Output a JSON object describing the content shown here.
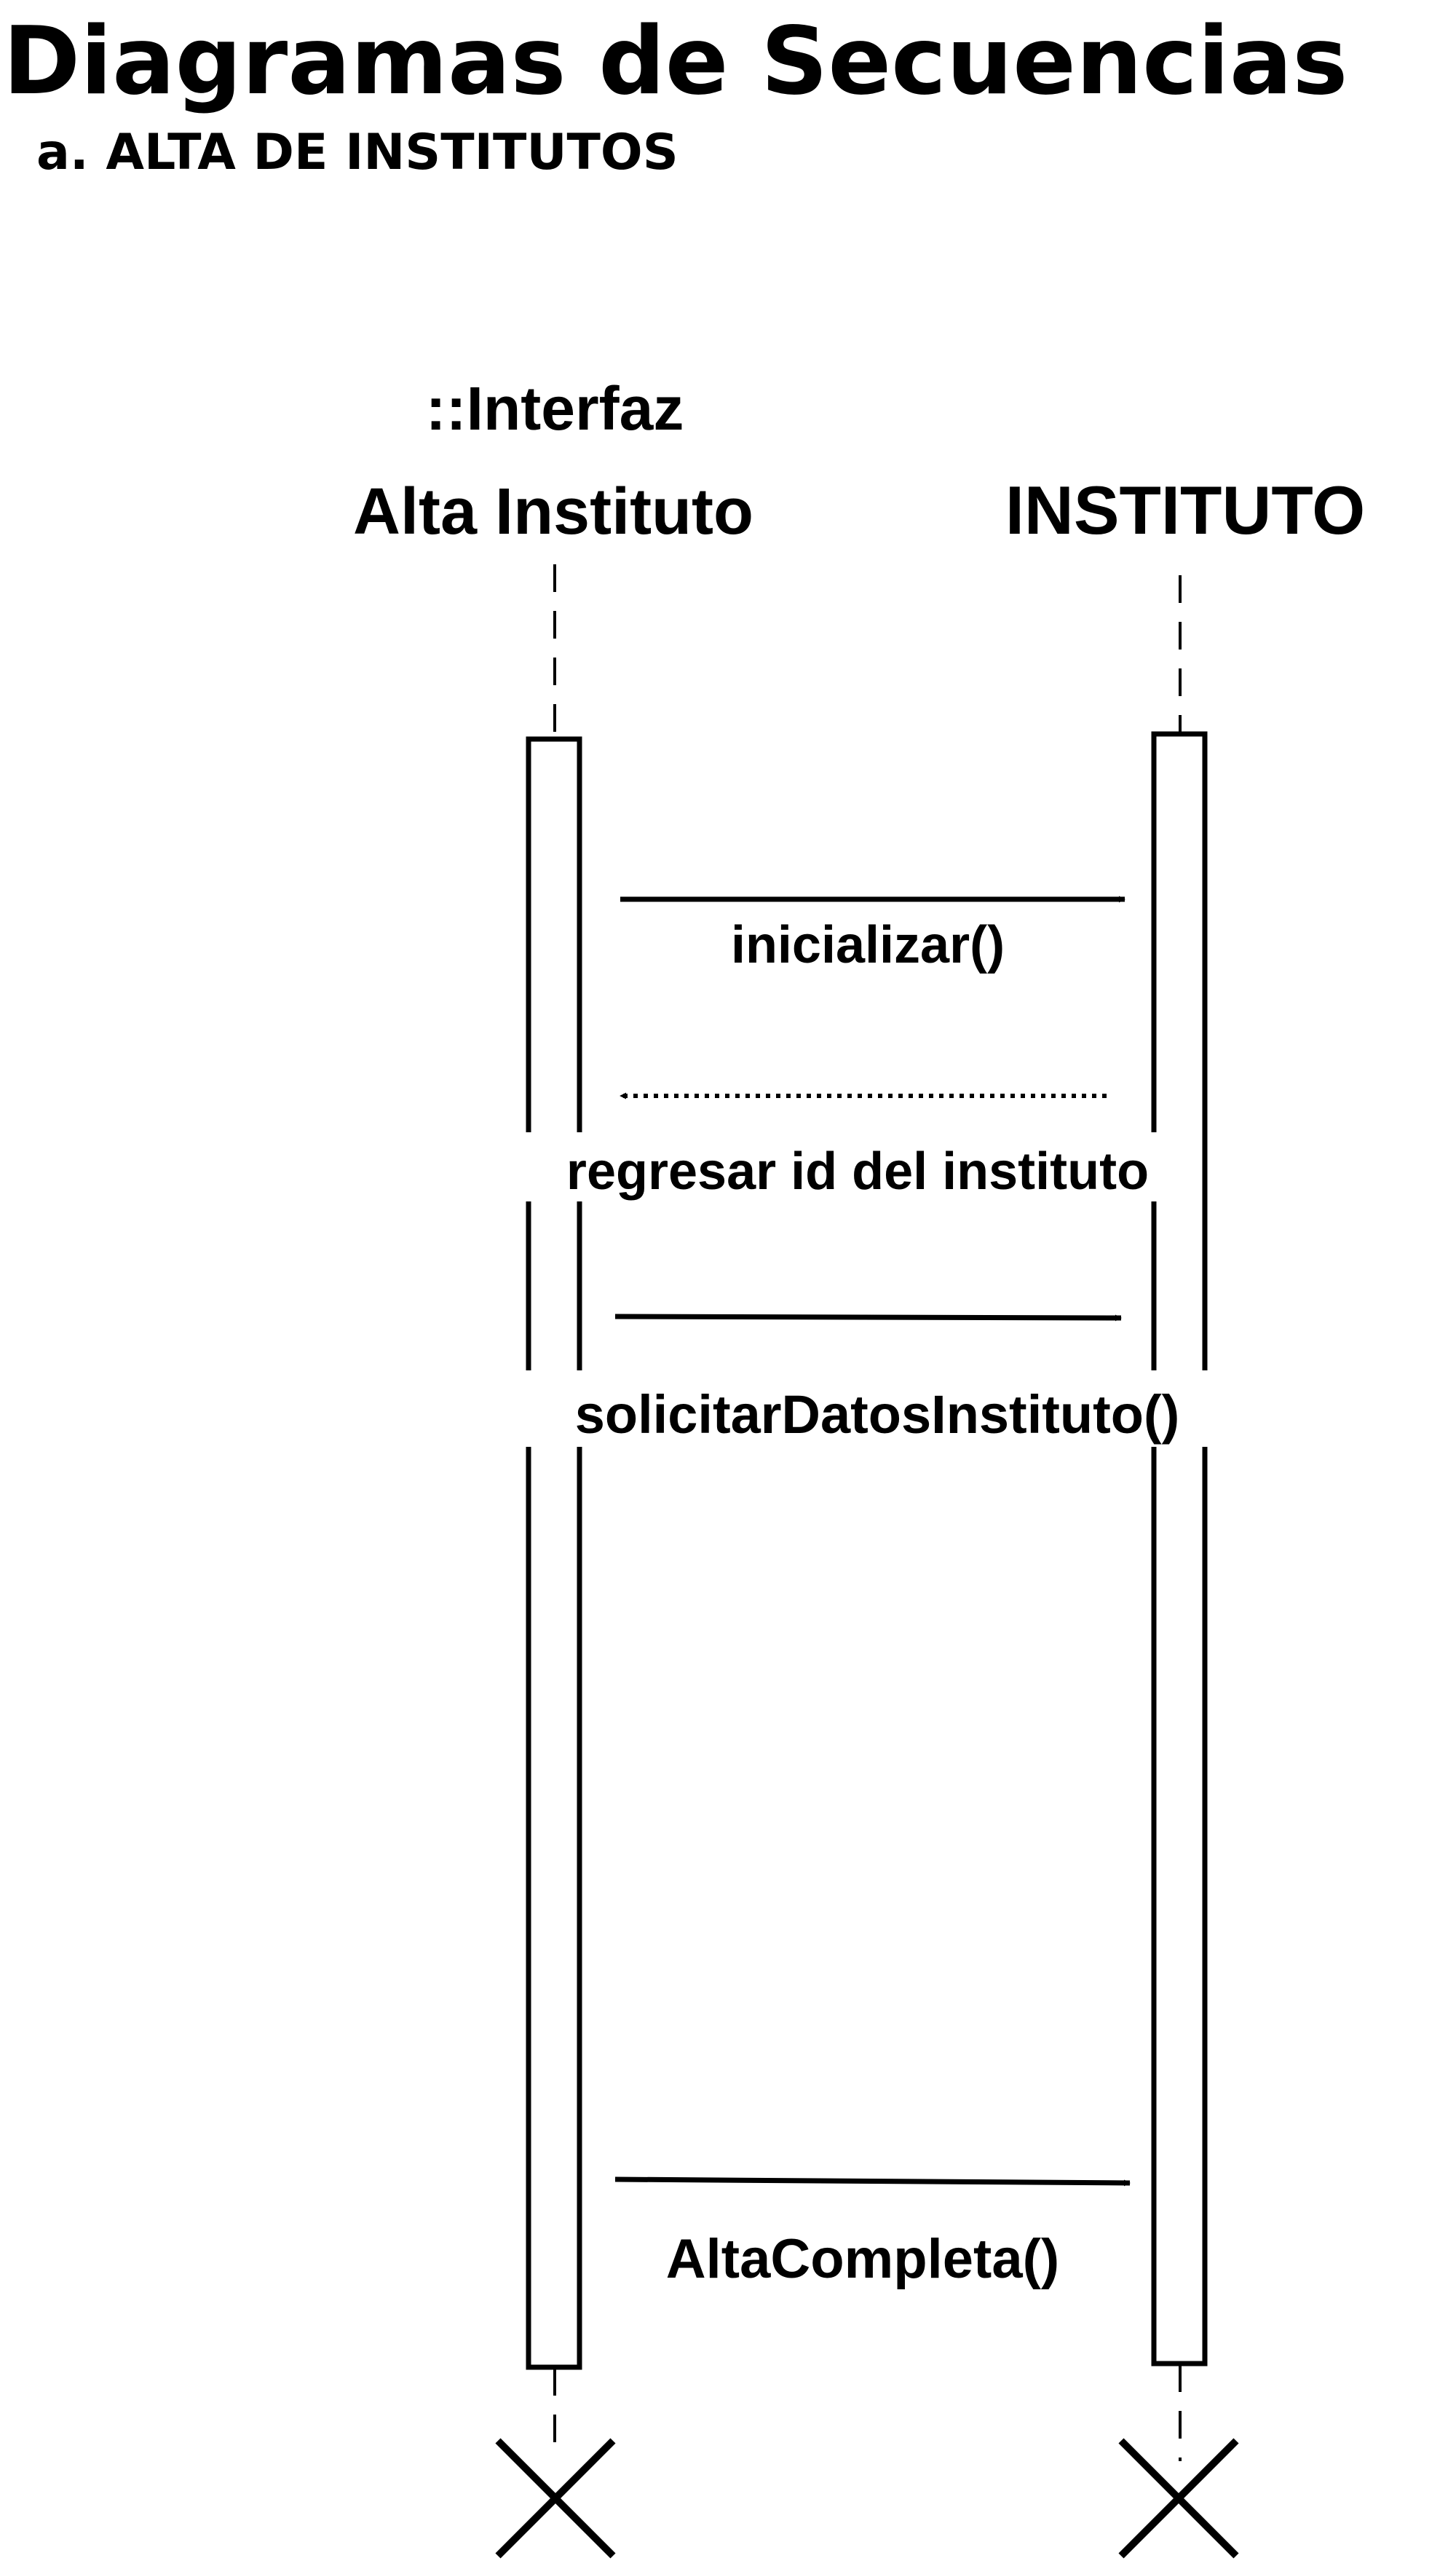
{
  "title": "Diagramas de Secuencias",
  "subtitle": "a. ALTA DE INSTITUTOS",
  "lifelines": [
    {
      "id": "interfaz",
      "label_line1": "::Interfaz",
      "label_line2": "Alta Instituto"
    },
    {
      "id": "instituto",
      "label_line1": "",
      "label_line2": "INSTITUTO"
    }
  ],
  "messages": [
    {
      "label": "inicializar()",
      "from": "interfaz",
      "to": "instituto",
      "kind": "sync"
    },
    {
      "label": "regresar id del instituto",
      "from": "instituto",
      "to": "interfaz",
      "kind": "return"
    },
    {
      "label": "solicitarDatosInstituto()",
      "from": "interfaz",
      "to": "instituto",
      "kind": "sync"
    },
    {
      "label": "AltaCompleta()",
      "from": "interfaz",
      "to": "instituto",
      "kind": "sync"
    }
  ],
  "colors": {
    "ink": "#000000",
    "background": "#ffffff"
  }
}
